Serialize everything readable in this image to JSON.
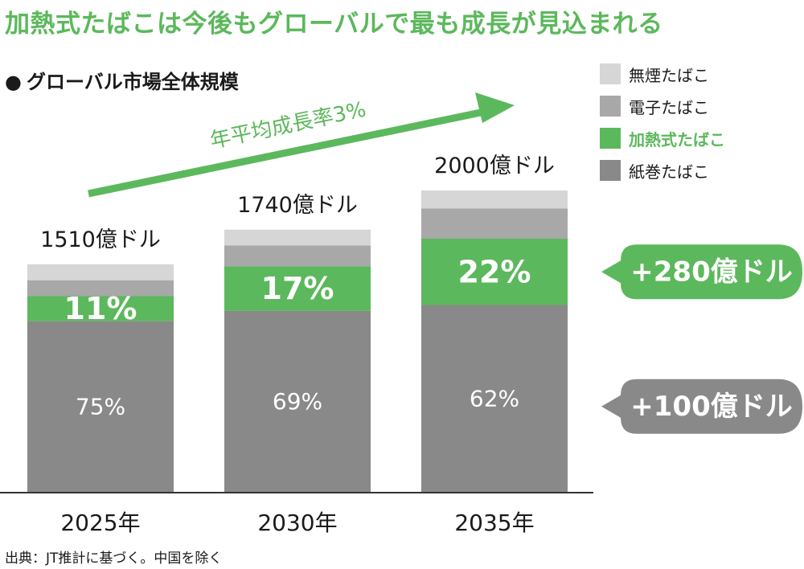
{
  "headline": "加熱式たばこは今後もグローバルで最も成長が見込まれる",
  "subtitle": "グローバル市場全体規模",
  "bullet": "●",
  "source": "出典：JT推計に基づく。中国を除く",
  "legend": [
    {
      "label": "無煙たばこ",
      "color": "#d6d6d6",
      "highlight": false
    },
    {
      "label": "電子たばこ",
      "color": "#a8a8a8",
      "highlight": false
    },
    {
      "label": "加熱式たばこ",
      "color": "#5cb85c",
      "highlight": true
    },
    {
      "label": "紙巻たばこ",
      "color": "#898989",
      "highlight": false
    }
  ],
  "cagr_label": "年平均成長率3%",
  "callouts": [
    {
      "text": "+280億ドル",
      "color": "#5cb85c"
    },
    {
      "text": "+100億ドル",
      "color": "#898989"
    }
  ],
  "chart_data": {
    "type": "bar",
    "stacked": true,
    "categories": [
      "2025年",
      "2030年",
      "2035年"
    ],
    "totals": [
      1510,
      1740,
      2000
    ],
    "total_labels": [
      "1510億ドル",
      "1740億ドル",
      "2000億ドル"
    ],
    "unit": "億ドル",
    "series": [
      {
        "name": "紙巻たばこ",
        "color": "#898989",
        "shares": [
          75,
          69,
          62
        ],
        "labels": [
          "75%",
          "69%",
          "62%"
        ]
      },
      {
        "name": "加熱式たばこ",
        "color": "#5cb85c",
        "shares": [
          11,
          17,
          22
        ],
        "labels": [
          "11%",
          "17%",
          "22%"
        ]
      },
      {
        "name": "電子たばこ",
        "color": "#a8a8a8",
        "shares": [
          7,
          8,
          10
        ],
        "labels": [
          "",
          "",
          ""
        ]
      },
      {
        "name": "無煙たばこ",
        "color": "#d6d6d6",
        "shares": [
          7,
          6,
          6
        ],
        "labels": [
          "",
          "",
          ""
        ]
      }
    ],
    "ylim": [
      0,
      2000
    ]
  }
}
